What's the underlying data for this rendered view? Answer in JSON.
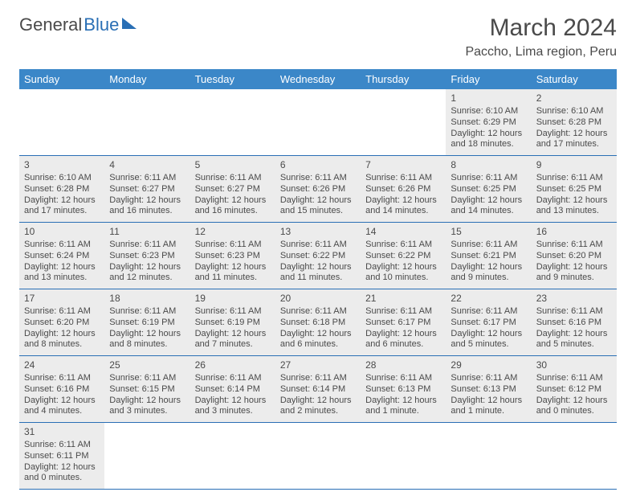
{
  "brand": {
    "general": "General",
    "blue": "Blue"
  },
  "title": {
    "month": "March 2024",
    "location": "Paccho, Lima region, Peru"
  },
  "colors": {
    "header_bg": "#3b87c8",
    "header_fg": "#ffffff",
    "rule": "#2a6fb5",
    "shade": "#ececec",
    "text": "#4a4a4a"
  },
  "typography": {
    "body_pt": 11,
    "dayhdr_pt": 13,
    "title_pt": 30,
    "loc_pt": 16
  },
  "columns": [
    "Sunday",
    "Monday",
    "Tuesday",
    "Wednesday",
    "Thursday",
    "Friday",
    "Saturday"
  ],
  "weeks": [
    [
      null,
      null,
      null,
      null,
      null,
      {
        "n": "1",
        "sr": "Sunrise: 6:10 AM",
        "ss": "Sunset: 6:29 PM",
        "d1": "Daylight: 12 hours",
        "d2": "and 18 minutes."
      },
      {
        "n": "2",
        "sr": "Sunrise: 6:10 AM",
        "ss": "Sunset: 6:28 PM",
        "d1": "Daylight: 12 hours",
        "d2": "and 17 minutes."
      }
    ],
    [
      {
        "n": "3",
        "sr": "Sunrise: 6:10 AM",
        "ss": "Sunset: 6:28 PM",
        "d1": "Daylight: 12 hours",
        "d2": "and 17 minutes."
      },
      {
        "n": "4",
        "sr": "Sunrise: 6:11 AM",
        "ss": "Sunset: 6:27 PM",
        "d1": "Daylight: 12 hours",
        "d2": "and 16 minutes."
      },
      {
        "n": "5",
        "sr": "Sunrise: 6:11 AM",
        "ss": "Sunset: 6:27 PM",
        "d1": "Daylight: 12 hours",
        "d2": "and 16 minutes."
      },
      {
        "n": "6",
        "sr": "Sunrise: 6:11 AM",
        "ss": "Sunset: 6:26 PM",
        "d1": "Daylight: 12 hours",
        "d2": "and 15 minutes."
      },
      {
        "n": "7",
        "sr": "Sunrise: 6:11 AM",
        "ss": "Sunset: 6:26 PM",
        "d1": "Daylight: 12 hours",
        "d2": "and 14 minutes."
      },
      {
        "n": "8",
        "sr": "Sunrise: 6:11 AM",
        "ss": "Sunset: 6:25 PM",
        "d1": "Daylight: 12 hours",
        "d2": "and 14 minutes."
      },
      {
        "n": "9",
        "sr": "Sunrise: 6:11 AM",
        "ss": "Sunset: 6:25 PM",
        "d1": "Daylight: 12 hours",
        "d2": "and 13 minutes."
      }
    ],
    [
      {
        "n": "10",
        "sr": "Sunrise: 6:11 AM",
        "ss": "Sunset: 6:24 PM",
        "d1": "Daylight: 12 hours",
        "d2": "and 13 minutes."
      },
      {
        "n": "11",
        "sr": "Sunrise: 6:11 AM",
        "ss": "Sunset: 6:23 PM",
        "d1": "Daylight: 12 hours",
        "d2": "and 12 minutes."
      },
      {
        "n": "12",
        "sr": "Sunrise: 6:11 AM",
        "ss": "Sunset: 6:23 PM",
        "d1": "Daylight: 12 hours",
        "d2": "and 11 minutes."
      },
      {
        "n": "13",
        "sr": "Sunrise: 6:11 AM",
        "ss": "Sunset: 6:22 PM",
        "d1": "Daylight: 12 hours",
        "d2": "and 11 minutes."
      },
      {
        "n": "14",
        "sr": "Sunrise: 6:11 AM",
        "ss": "Sunset: 6:22 PM",
        "d1": "Daylight: 12 hours",
        "d2": "and 10 minutes."
      },
      {
        "n": "15",
        "sr": "Sunrise: 6:11 AM",
        "ss": "Sunset: 6:21 PM",
        "d1": "Daylight: 12 hours",
        "d2": "and 9 minutes."
      },
      {
        "n": "16",
        "sr": "Sunrise: 6:11 AM",
        "ss": "Sunset: 6:20 PM",
        "d1": "Daylight: 12 hours",
        "d2": "and 9 minutes."
      }
    ],
    [
      {
        "n": "17",
        "sr": "Sunrise: 6:11 AM",
        "ss": "Sunset: 6:20 PM",
        "d1": "Daylight: 12 hours",
        "d2": "and 8 minutes."
      },
      {
        "n": "18",
        "sr": "Sunrise: 6:11 AM",
        "ss": "Sunset: 6:19 PM",
        "d1": "Daylight: 12 hours",
        "d2": "and 8 minutes."
      },
      {
        "n": "19",
        "sr": "Sunrise: 6:11 AM",
        "ss": "Sunset: 6:19 PM",
        "d1": "Daylight: 12 hours",
        "d2": "and 7 minutes."
      },
      {
        "n": "20",
        "sr": "Sunrise: 6:11 AM",
        "ss": "Sunset: 6:18 PM",
        "d1": "Daylight: 12 hours",
        "d2": "and 6 minutes."
      },
      {
        "n": "21",
        "sr": "Sunrise: 6:11 AM",
        "ss": "Sunset: 6:17 PM",
        "d1": "Daylight: 12 hours",
        "d2": "and 6 minutes."
      },
      {
        "n": "22",
        "sr": "Sunrise: 6:11 AM",
        "ss": "Sunset: 6:17 PM",
        "d1": "Daylight: 12 hours",
        "d2": "and 5 minutes."
      },
      {
        "n": "23",
        "sr": "Sunrise: 6:11 AM",
        "ss": "Sunset: 6:16 PM",
        "d1": "Daylight: 12 hours",
        "d2": "and 5 minutes."
      }
    ],
    [
      {
        "n": "24",
        "sr": "Sunrise: 6:11 AM",
        "ss": "Sunset: 6:16 PM",
        "d1": "Daylight: 12 hours",
        "d2": "and 4 minutes."
      },
      {
        "n": "25",
        "sr": "Sunrise: 6:11 AM",
        "ss": "Sunset: 6:15 PM",
        "d1": "Daylight: 12 hours",
        "d2": "and 3 minutes."
      },
      {
        "n": "26",
        "sr": "Sunrise: 6:11 AM",
        "ss": "Sunset: 6:14 PM",
        "d1": "Daylight: 12 hours",
        "d2": "and 3 minutes."
      },
      {
        "n": "27",
        "sr": "Sunrise: 6:11 AM",
        "ss": "Sunset: 6:14 PM",
        "d1": "Daylight: 12 hours",
        "d2": "and 2 minutes."
      },
      {
        "n": "28",
        "sr": "Sunrise: 6:11 AM",
        "ss": "Sunset: 6:13 PM",
        "d1": "Daylight: 12 hours",
        "d2": "and 1 minute."
      },
      {
        "n": "29",
        "sr": "Sunrise: 6:11 AM",
        "ss": "Sunset: 6:13 PM",
        "d1": "Daylight: 12 hours",
        "d2": "and 1 minute."
      },
      {
        "n": "30",
        "sr": "Sunrise: 6:11 AM",
        "ss": "Sunset: 6:12 PM",
        "d1": "Daylight: 12 hours",
        "d2": "and 0 minutes."
      }
    ],
    [
      {
        "n": "31",
        "sr": "Sunrise: 6:11 AM",
        "ss": "Sunset: 6:11 PM",
        "d1": "Daylight: 12 hours",
        "d2": "and 0 minutes."
      },
      null,
      null,
      null,
      null,
      null,
      null
    ]
  ]
}
